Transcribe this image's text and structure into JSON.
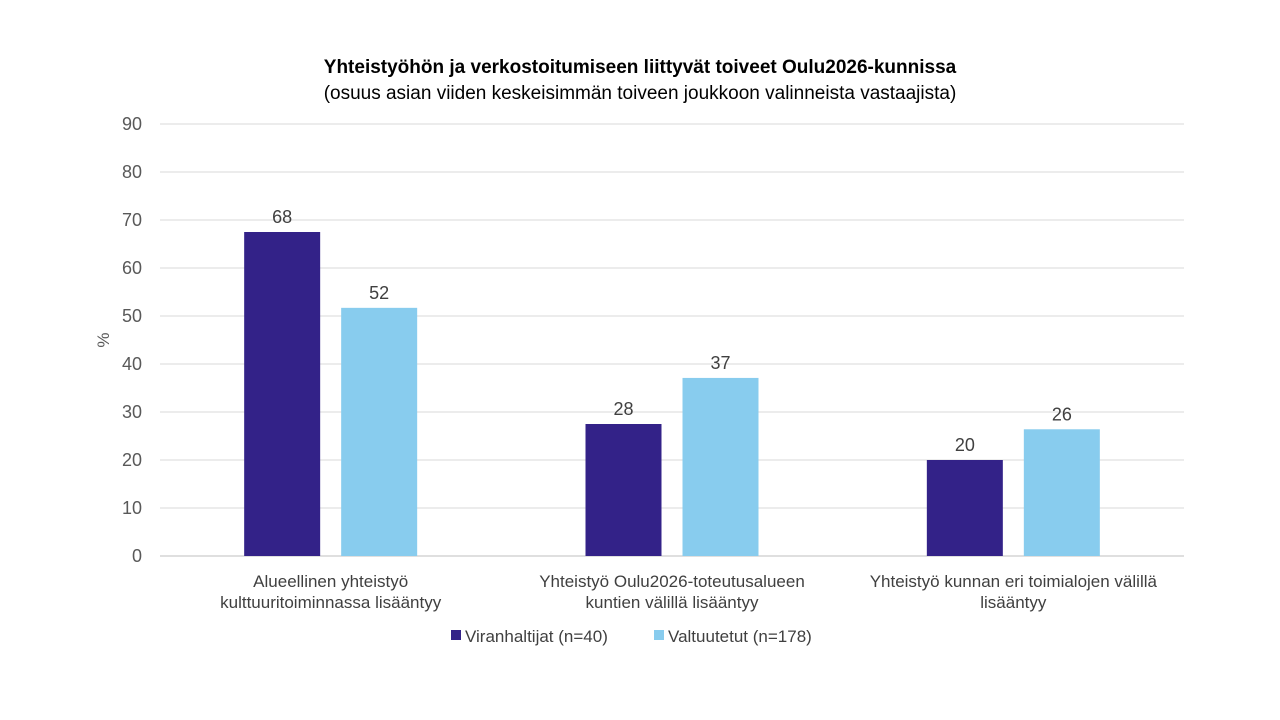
{
  "chart_data": {
    "type": "bar",
    "title": "Yhteistyöhön ja verkostoitumiseen liittyvät toiveet Oulu2026-kunnissa",
    "subtitle": "(osuus asian viiden keskeisimmän toiveen joukkoon valinneista vastaajista)",
    "xlabel": "",
    "ylabel": "%",
    "ylim": [
      0,
      90
    ],
    "yticks": [
      "0",
      "10",
      "20",
      "30",
      "40",
      "50",
      "60",
      "70",
      "80",
      "90"
    ],
    "grid": true,
    "legend_position": "bottom-center",
    "categories": [
      [
        "Alueellinen yhteistyö",
        "kulttuuritoiminnassa lisääntyy"
      ],
      [
        "Yhteistyö Oulu2026-toteutusalueen",
        "kuntien välillä lisääntyy"
      ],
      [
        "Yhteistyö kunnan eri toimialojen välillä",
        "lisääntyy"
      ]
    ],
    "series": [
      {
        "name": "Viranhaltijat (n=40)",
        "color": "#332288",
        "values": [
          67.5,
          27.5,
          20
        ],
        "labels": [
          "68",
          "28",
          "20"
        ]
      },
      {
        "name": "Valtuutetut (n=178)",
        "color": "#88CCEE",
        "values": [
          51.7,
          37.1,
          26.4
        ],
        "labels": [
          "52",
          "37",
          "26"
        ]
      }
    ]
  }
}
